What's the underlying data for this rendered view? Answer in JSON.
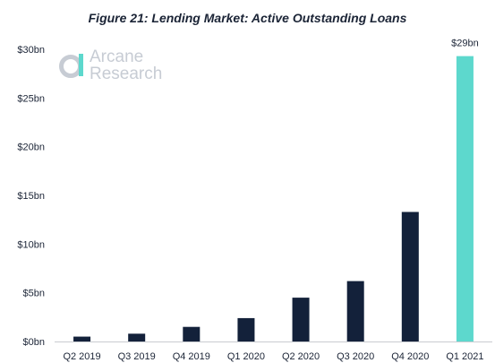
{
  "chart_data": {
    "type": "bar",
    "title": "Figure 21: Lending Market: Active Outstanding Loans",
    "categories": [
      "Q2 2019",
      "Q3 2019",
      "Q4 2019",
      "Q1 2020",
      "Q2 2020",
      "Q3 2020",
      "Q4 2020",
      "Q1 2021"
    ],
    "values": [
      0.5,
      0.8,
      1.5,
      2.4,
      4.5,
      6.2,
      13.3,
      29.3
    ],
    "ylim": [
      0,
      30
    ],
    "yticks": [
      0,
      5,
      10,
      15,
      20,
      25,
      30
    ],
    "ytick_labels": [
      "$0bn",
      "$5bn",
      "$10bn",
      "$15bn",
      "$20bn",
      "$25bn",
      "$30bn"
    ],
    "xlabel": "",
    "ylabel": "",
    "grid": false,
    "bar_colors": [
      "#13213a",
      "#13213a",
      "#13213a",
      "#13213a",
      "#13213a",
      "#13213a",
      "#13213a",
      "#5dd8cd"
    ],
    "annotations": [
      {
        "category": "Q1 2021",
        "text": "$29bn"
      }
    ]
  },
  "watermark": {
    "line1": "Arcane",
    "line2": "Research"
  }
}
